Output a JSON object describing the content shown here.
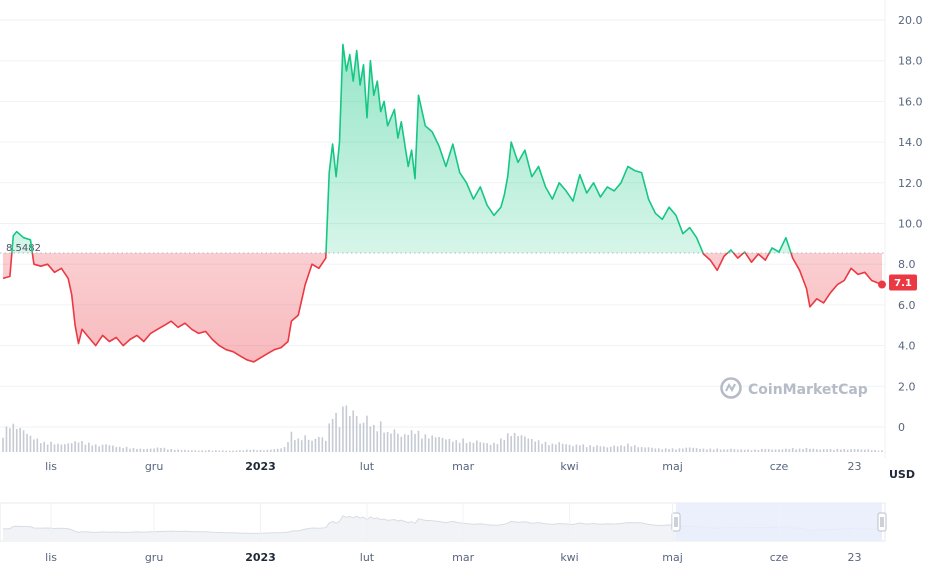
{
  "chart_data": {
    "type": "area",
    "currency": "USD",
    "reference_value": 8.5482,
    "reference_label": "8.5482",
    "current_value": 7.1,
    "current_label": "7.1",
    "ylim": [
      0,
      20
    ],
    "y_ticks": [
      {
        "value": 0,
        "label": "0"
      },
      {
        "value": 2,
        "label": "2.0"
      },
      {
        "value": 4,
        "label": "4.0"
      },
      {
        "value": 6,
        "label": "6.0"
      },
      {
        "value": 8,
        "label": "8.0"
      },
      {
        "value": 10,
        "label": "10.0"
      },
      {
        "value": 12,
        "label": "12.0"
      },
      {
        "value": 14,
        "label": "14.0"
      },
      {
        "value": 16,
        "label": "16.0"
      },
      {
        "value": 18,
        "label": "18.0"
      },
      {
        "value": 20,
        "label": "20.0"
      }
    ],
    "x_ticks": [
      {
        "day": 14,
        "label": "lis",
        "bold": false
      },
      {
        "day": 44,
        "label": "gru",
        "bold": false
      },
      {
        "day": 75,
        "label": "2023",
        "bold": true
      },
      {
        "day": 106,
        "label": "lut",
        "bold": false
      },
      {
        "day": 134,
        "label": "mar",
        "bold": false
      },
      {
        "day": 165,
        "label": "kwi",
        "bold": false
      },
      {
        "day": 195,
        "label": "maj",
        "bold": false
      },
      {
        "day": 226,
        "label": "cze",
        "bold": false
      },
      {
        "day": 248,
        "label": "23",
        "bold": false
      }
    ],
    "x_range": [
      0,
      256
    ],
    "price_series": [
      [
        0,
        7.3
      ],
      [
        2,
        7.4
      ],
      [
        3,
        9.4
      ],
      [
        4,
        9.6
      ],
      [
        6,
        9.3
      ],
      [
        8,
        9.2
      ],
      [
        9,
        8.0
      ],
      [
        11,
        7.9
      ],
      [
        13,
        8.0
      ],
      [
        15,
        7.6
      ],
      [
        17,
        7.8
      ],
      [
        19,
        7.3
      ],
      [
        20,
        6.5
      ],
      [
        21,
        5.0
      ],
      [
        22,
        4.1
      ],
      [
        23,
        4.8
      ],
      [
        25,
        4.4
      ],
      [
        27,
        4.0
      ],
      [
        29,
        4.5
      ],
      [
        31,
        4.2
      ],
      [
        33,
        4.4
      ],
      [
        35,
        4.0
      ],
      [
        37,
        4.3
      ],
      [
        39,
        4.5
      ],
      [
        41,
        4.2
      ],
      [
        43,
        4.6
      ],
      [
        45,
        4.8
      ],
      [
        47,
        5.0
      ],
      [
        49,
        5.2
      ],
      [
        51,
        4.9
      ],
      [
        53,
        5.1
      ],
      [
        55,
        4.8
      ],
      [
        57,
        4.6
      ],
      [
        59,
        4.7
      ],
      [
        61,
        4.3
      ],
      [
        63,
        4.0
      ],
      [
        65,
        3.8
      ],
      [
        67,
        3.7
      ],
      [
        69,
        3.5
      ],
      [
        71,
        3.3
      ],
      [
        73,
        3.2
      ],
      [
        75,
        3.4
      ],
      [
        77,
        3.6
      ],
      [
        79,
        3.8
      ],
      [
        81,
        3.9
      ],
      [
        83,
        4.2
      ],
      [
        84,
        5.2
      ],
      [
        86,
        5.5
      ],
      [
        88,
        7.0
      ],
      [
        90,
        8.0
      ],
      [
        92,
        7.8
      ],
      [
        94,
        8.3
      ],
      [
        95,
        12.5
      ],
      [
        96,
        13.9
      ],
      [
        97,
        12.3
      ],
      [
        98,
        14.0
      ],
      [
        99,
        18.8
      ],
      [
        100,
        17.5
      ],
      [
        101,
        18.3
      ],
      [
        102,
        17.0
      ],
      [
        103,
        18.5
      ],
      [
        104,
        16.8
      ],
      [
        105,
        17.8
      ],
      [
        106,
        15.2
      ],
      [
        107,
        18.0
      ],
      [
        108,
        16.3
      ],
      [
        109,
        17.0
      ],
      [
        110,
        15.5
      ],
      [
        111,
        16.0
      ],
      [
        112,
        14.8
      ],
      [
        114,
        15.6
      ],
      [
        115,
        14.2
      ],
      [
        116,
        15.0
      ],
      [
        118,
        12.8
      ],
      [
        119,
        13.6
      ],
      [
        120,
        12.2
      ],
      [
        121,
        16.3
      ],
      [
        123,
        14.8
      ],
      [
        125,
        14.5
      ],
      [
        127,
        13.8
      ],
      [
        129,
        12.8
      ],
      [
        131,
        13.9
      ],
      [
        133,
        12.5
      ],
      [
        135,
        12.0
      ],
      [
        137,
        11.2
      ],
      [
        139,
        11.8
      ],
      [
        141,
        10.9
      ],
      [
        143,
        10.4
      ],
      [
        145,
        10.8
      ],
      [
        146,
        11.4
      ],
      [
        147,
        12.3
      ],
      [
        148,
        14.0
      ],
      [
        150,
        13.0
      ],
      [
        152,
        13.6
      ],
      [
        154,
        12.3
      ],
      [
        156,
        12.8
      ],
      [
        158,
        11.8
      ],
      [
        160,
        11.2
      ],
      [
        162,
        12.0
      ],
      [
        164,
        11.6
      ],
      [
        166,
        11.1
      ],
      [
        168,
        12.4
      ],
      [
        170,
        11.5
      ],
      [
        172,
        12.0
      ],
      [
        174,
        11.3
      ],
      [
        176,
        11.8
      ],
      [
        178,
        11.6
      ],
      [
        180,
        12.0
      ],
      [
        182,
        12.8
      ],
      [
        184,
        12.6
      ],
      [
        186,
        12.5
      ],
      [
        188,
        11.2
      ],
      [
        190,
        10.5
      ],
      [
        192,
        10.2
      ],
      [
        194,
        10.8
      ],
      [
        196,
        10.4
      ],
      [
        198,
        9.5
      ],
      [
        200,
        9.8
      ],
      [
        202,
        9.3
      ],
      [
        204,
        8.5
      ],
      [
        206,
        8.2
      ],
      [
        208,
        7.7
      ],
      [
        210,
        8.4
      ],
      [
        212,
        8.7
      ],
      [
        214,
        8.3
      ],
      [
        216,
        8.6
      ],
      [
        218,
        8.1
      ],
      [
        220,
        8.5
      ],
      [
        222,
        8.2
      ],
      [
        224,
        8.8
      ],
      [
        226,
        8.6
      ],
      [
        228,
        9.3
      ],
      [
        230,
        8.3
      ],
      [
        232,
        7.7
      ],
      [
        234,
        6.8
      ],
      [
        235,
        5.9
      ],
      [
        237,
        6.3
      ],
      [
        239,
        6.1
      ],
      [
        241,
        6.6
      ],
      [
        243,
        7.0
      ],
      [
        245,
        7.2
      ],
      [
        247,
        7.8
      ],
      [
        249,
        7.5
      ],
      [
        251,
        7.6
      ],
      [
        253,
        7.2
      ],
      [
        256,
        7.0
      ]
    ],
    "volume_series": [
      [
        0,
        0.6
      ],
      [
        2,
        0.9
      ],
      [
        4,
        0.8
      ],
      [
        6,
        0.7
      ],
      [
        8,
        0.5
      ],
      [
        10,
        0.4
      ],
      [
        12,
        0.3
      ],
      [
        14,
        0.3
      ],
      [
        16,
        0.25
      ],
      [
        18,
        0.25
      ],
      [
        20,
        0.3
      ],
      [
        22,
        0.35
      ],
      [
        24,
        0.3
      ],
      [
        26,
        0.25
      ],
      [
        28,
        0.2
      ],
      [
        30,
        0.25
      ],
      [
        32,
        0.2
      ],
      [
        34,
        0.15
      ],
      [
        36,
        0.15
      ],
      [
        38,
        0.12
      ],
      [
        40,
        0.1
      ],
      [
        42,
        0.1
      ],
      [
        44,
        0.12
      ],
      [
        46,
        0.15
      ],
      [
        48,
        0.1
      ],
      [
        50,
        0.08
      ],
      [
        52,
        0.07
      ],
      [
        54,
        0.06
      ],
      [
        56,
        0.05
      ],
      [
        58,
        0.05
      ],
      [
        60,
        0.06
      ],
      [
        62,
        0.05
      ],
      [
        64,
        0.05
      ],
      [
        66,
        0.04
      ],
      [
        68,
        0.05
      ],
      [
        70,
        0.06
      ],
      [
        72,
        0.08
      ],
      [
        74,
        0.07
      ],
      [
        76,
        0.06
      ],
      [
        78,
        0.08
      ],
      [
        80,
        0.1
      ],
      [
        82,
        0.15
      ],
      [
        84,
        0.6
      ],
      [
        86,
        0.4
      ],
      [
        88,
        0.5
      ],
      [
        90,
        0.35
      ],
      [
        92,
        0.5
      ],
      [
        94,
        0.4
      ],
      [
        96,
        1.3
      ],
      [
        98,
        1.0
      ],
      [
        100,
        1.7
      ],
      [
        101,
        1.1
      ],
      [
        102,
        1.4
      ],
      [
        104,
        0.9
      ],
      [
        106,
        1.1
      ],
      [
        108,
        0.8
      ],
      [
        110,
        0.9
      ],
      [
        112,
        0.6
      ],
      [
        114,
        0.7
      ],
      [
        116,
        0.5
      ],
      [
        118,
        0.6
      ],
      [
        120,
        0.7
      ],
      [
        122,
        0.55
      ],
      [
        124,
        0.5
      ],
      [
        126,
        0.5
      ],
      [
        128,
        0.45
      ],
      [
        130,
        0.4
      ],
      [
        132,
        0.35
      ],
      [
        134,
        0.4
      ],
      [
        136,
        0.3
      ],
      [
        138,
        0.35
      ],
      [
        140,
        0.3
      ],
      [
        142,
        0.25
      ],
      [
        144,
        0.3
      ],
      [
        146,
        0.5
      ],
      [
        148,
        0.6
      ],
      [
        150,
        0.55
      ],
      [
        152,
        0.5
      ],
      [
        154,
        0.4
      ],
      [
        156,
        0.35
      ],
      [
        158,
        0.3
      ],
      [
        160,
        0.25
      ],
      [
        162,
        0.3
      ],
      [
        164,
        0.25
      ],
      [
        166,
        0.2
      ],
      [
        168,
        0.25
      ],
      [
        170,
        0.2
      ],
      [
        172,
        0.2
      ],
      [
        174,
        0.2
      ],
      [
        176,
        0.15
      ],
      [
        178,
        0.2
      ],
      [
        180,
        0.2
      ],
      [
        182,
        0.25
      ],
      [
        184,
        0.2
      ],
      [
        186,
        0.15
      ],
      [
        188,
        0.15
      ],
      [
        190,
        0.12
      ],
      [
        192,
        0.1
      ],
      [
        194,
        0.12
      ],
      [
        196,
        0.1
      ],
      [
        198,
        0.12
      ],
      [
        200,
        0.15
      ],
      [
        202,
        0.12
      ],
      [
        204,
        0.1
      ],
      [
        206,
        0.1
      ],
      [
        208,
        0.1
      ],
      [
        210,
        0.08
      ],
      [
        212,
        0.1
      ],
      [
        214,
        0.08
      ],
      [
        216,
        0.08
      ],
      [
        218,
        0.07
      ],
      [
        220,
        0.08
      ],
      [
        222,
        0.1
      ],
      [
        224,
        0.08
      ],
      [
        226,
        0.08
      ],
      [
        228,
        0.1
      ],
      [
        230,
        0.12
      ],
      [
        232,
        0.1
      ],
      [
        234,
        0.12
      ],
      [
        236,
        0.1
      ],
      [
        238,
        0.08
      ],
      [
        240,
        0.1
      ],
      [
        242,
        0.08
      ],
      [
        244,
        0.1
      ],
      [
        246,
        0.08
      ],
      [
        248,
        0.1
      ],
      [
        250,
        0.08
      ],
      [
        252,
        0.08
      ],
      [
        254,
        0.06
      ],
      [
        256,
        0.05
      ]
    ],
    "colors": {
      "up": "#16c784",
      "down": "#ea3943",
      "volume": "#c5cad3",
      "grid": "#eff2f5",
      "reference": "#b0b7c3",
      "navigator_line": "#e5e8ee",
      "navigator_fill": "#f1f3f6",
      "navigator_window": "#e8edfb"
    },
    "navigator": {
      "window": [
        196,
        256
      ]
    }
  },
  "watermark": {
    "text": "CoinMarketCap",
    "logo_icon": "coinmarketcap-logo-icon"
  }
}
